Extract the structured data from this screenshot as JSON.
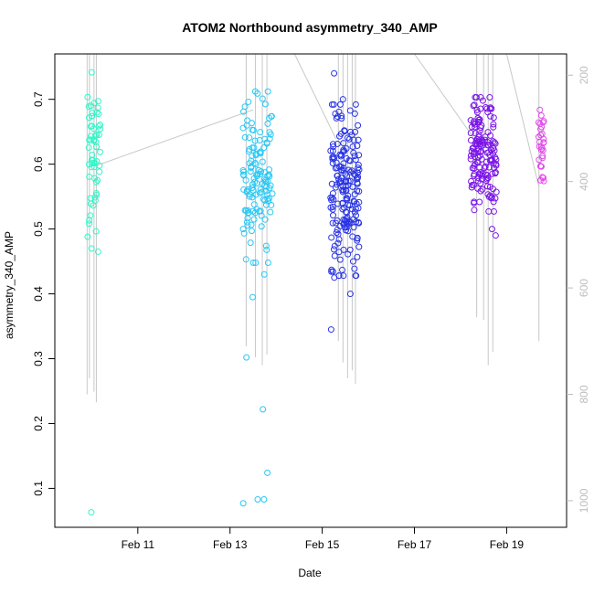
{
  "chart_data": {
    "type": "scatter",
    "title": "ATOM2 Northbound asymmetry_340_AMP",
    "xlabel": "Date",
    "ylabel": "asymmetry_340_AMP",
    "xlim_days": [
      9.2,
      20.3
    ],
    "ylim": [
      0.04,
      0.77
    ],
    "x_ticks": [
      {
        "day": 11,
        "label": "Feb 11"
      },
      {
        "day": 13,
        "label": "Feb 13"
      },
      {
        "day": 15,
        "label": "Feb 15"
      },
      {
        "day": 17,
        "label": "Feb 17"
      },
      {
        "day": 19,
        "label": "Feb 19"
      }
    ],
    "y_ticks": [
      0.1,
      0.2,
      0.3,
      0.4,
      0.5,
      0.6,
      0.7
    ],
    "y2_ticks": [
      200,
      400,
      600,
      800,
      1000
    ],
    "y2_range_bottom_to_top": [
      1050,
      160
    ],
    "y2_color": "#bdbdbd",
    "clusters": [
      {
        "center_day": 10.05,
        "spread_day": 0.14,
        "color": "#33f5c8",
        "n": 60,
        "main_mean": 0.62,
        "main_sd": 0.06,
        "extras": [
          0.69,
          0.68,
          0.47,
          0.465,
          0.063
        ]
      },
      {
        "center_day": 13.6,
        "spread_day": 0.32,
        "color": "#29c8f5",
        "n": 130,
        "main_mean": 0.58,
        "main_sd": 0.06,
        "extras": [
          0.43,
          0.395,
          0.302,
          0.222,
          0.124,
          0.083,
          0.083,
          0.077
        ]
      },
      {
        "center_day": 15.5,
        "spread_day": 0.32,
        "color": "#2833e6",
        "n": 190,
        "main_mean": 0.56,
        "main_sd": 0.06,
        "extras": [
          0.74,
          0.7,
          0.45,
          0.425,
          0.4,
          0.345
        ]
      },
      {
        "center_day": 18.5,
        "spread_day": 0.28,
        "color": "#7a14e8",
        "n": 150,
        "main_mean": 0.615,
        "main_sd": 0.04,
        "extras": [
          0.69,
          0.68,
          0.54,
          0.5,
          0.49
        ]
      },
      {
        "center_day": 19.75,
        "spread_day": 0.06,
        "color": "#e04ce8",
        "n": 28,
        "main_mean": 0.62,
        "main_sd": 0.03,
        "extras": [
          0.675,
          0.58
        ]
      }
    ],
    "pressure_trace": {
      "color": "#c8c8c8",
      "profiles": [
        {
          "x": 9.9,
          "top": 160,
          "bottom": 800
        },
        {
          "x": 9.95,
          "top": 160,
          "bottom": 770
        },
        {
          "x": 10.05,
          "top": 160,
          "bottom": 795
        },
        {
          "x": 10.1,
          "top": 160,
          "bottom": 815
        },
        {
          "x": 13.35,
          "top": 160,
          "bottom": 710
        },
        {
          "x": 13.55,
          "top": 160,
          "bottom": 730
        },
        {
          "x": 13.7,
          "top": 160,
          "bottom": 745
        },
        {
          "x": 13.8,
          "top": 160,
          "bottom": 725
        },
        {
          "x": 15.35,
          "top": 160,
          "bottom": 700
        },
        {
          "x": 15.45,
          "top": 160,
          "bottom": 740
        },
        {
          "x": 15.55,
          "top": 160,
          "bottom": 770
        },
        {
          "x": 15.65,
          "top": 160,
          "bottom": 755
        },
        {
          "x": 15.72,
          "top": 160,
          "bottom": 780
        },
        {
          "x": 18.35,
          "top": 160,
          "bottom": 655
        },
        {
          "x": 18.5,
          "top": 160,
          "bottom": 660
        },
        {
          "x": 18.6,
          "top": 160,
          "bottom": 745
        },
        {
          "x": 18.7,
          "top": 160,
          "bottom": 720
        },
        {
          "x": 19.7,
          "top": 160,
          "bottom": 700
        }
      ],
      "connectors": [
        [
          [
            10.1,
            370
          ],
          [
            13.5,
            265
          ]
        ],
        [
          [
            14.4,
            160
          ],
          [
            15.3,
            320
          ]
        ],
        [
          [
            17.0,
            160
          ],
          [
            18.3,
            320
          ]
        ],
        [
          [
            19.0,
            160
          ],
          [
            19.7,
            410
          ]
        ]
      ]
    }
  }
}
